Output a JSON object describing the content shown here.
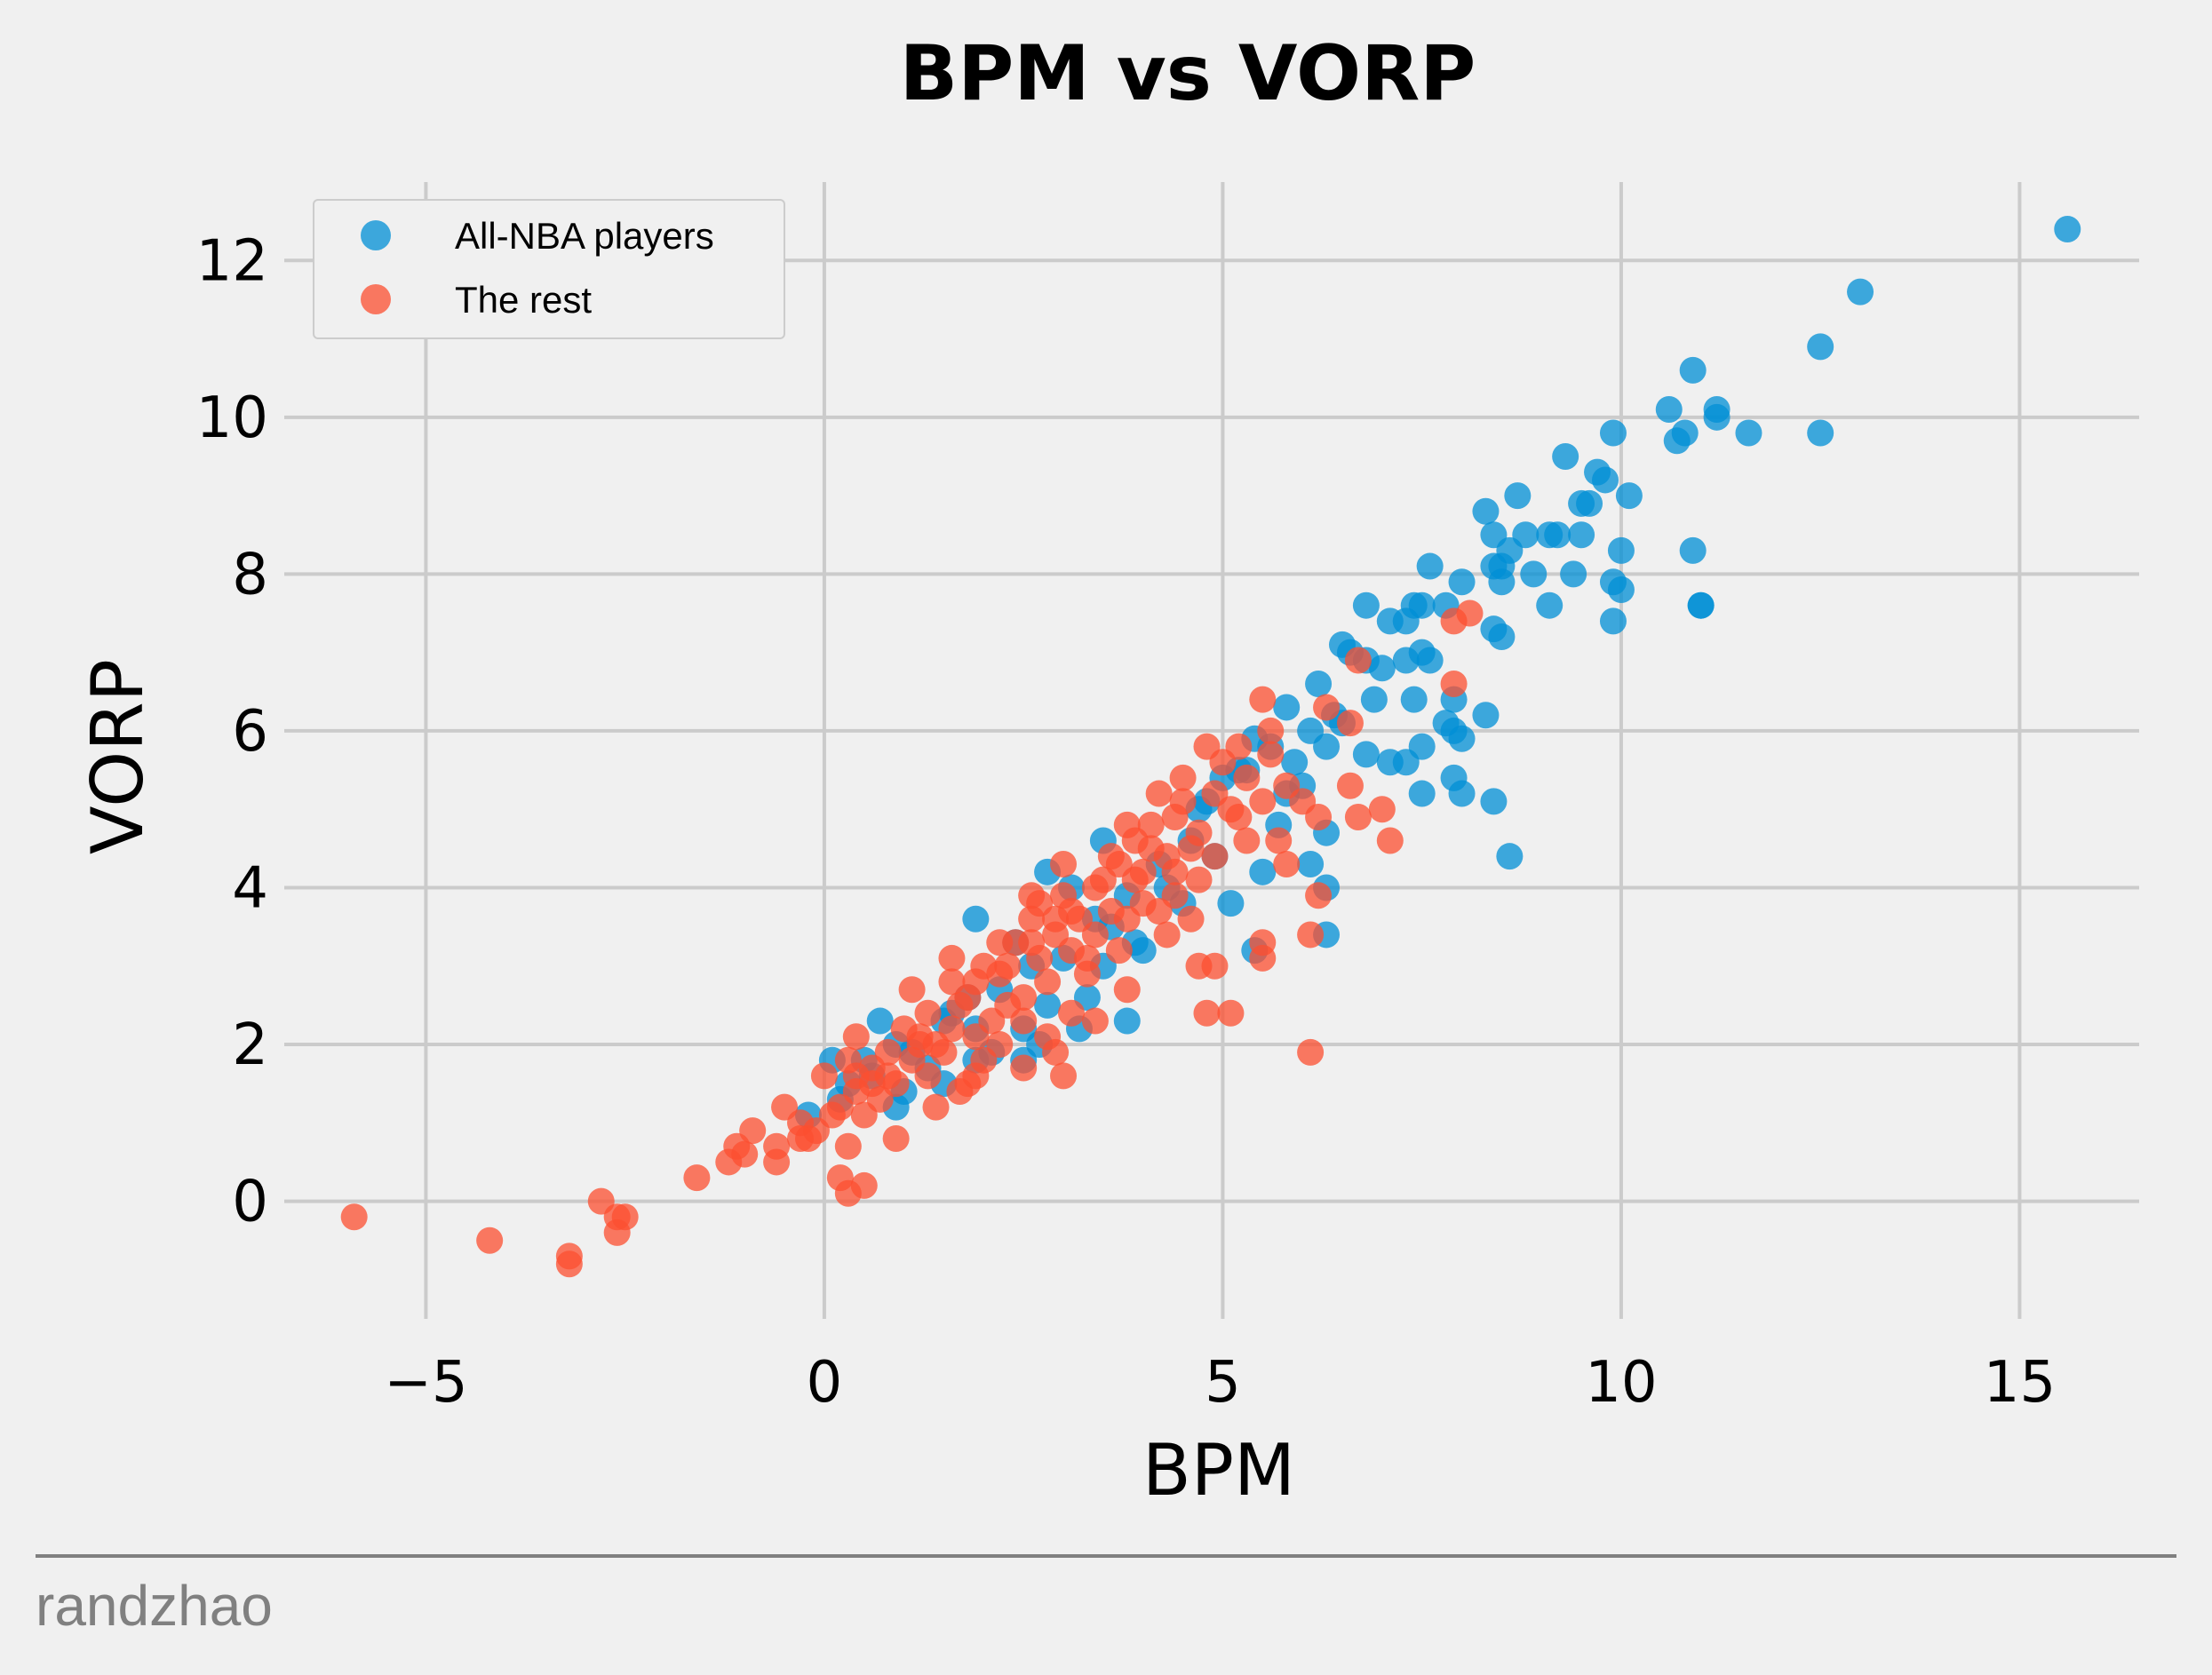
{
  "chart_data": {
    "type": "scatter",
    "title": "BPM vs VORP",
    "xlabel": "BPM",
    "ylabel": "VORP",
    "xlim": [
      -7,
      16.5
    ],
    "ylim": [
      -1.5,
      13
    ],
    "xticks": [
      -5,
      0,
      5,
      10,
      15
    ],
    "xtick_labels": [
      "−5",
      "0",
      "5",
      "10",
      "15"
    ],
    "yticks": [
      0,
      2,
      4,
      6,
      8,
      10,
      12
    ],
    "ytick_labels": [
      "0",
      "2",
      "4",
      "6",
      "8",
      "10",
      "12"
    ],
    "grid": true,
    "legend_position": "top-left",
    "series": [
      {
        "name": "All-NBA players",
        "color": "#008fd5",
        "points": [
          [
            15.6,
            12.4
          ],
          [
            13.0,
            11.6
          ],
          [
            12.5,
            10.9
          ],
          [
            12.5,
            9.8
          ],
          [
            10.9,
            10.6
          ],
          [
            10.6,
            10.1
          ],
          [
            11.2,
            10.1
          ],
          [
            11.2,
            10.0
          ],
          [
            10.8,
            9.8
          ],
          [
            10.7,
            9.7
          ],
          [
            11.6,
            9.8
          ],
          [
            9.9,
            9.8
          ],
          [
            9.3,
            9.5
          ],
          [
            9.7,
            9.3
          ],
          [
            9.8,
            9.2
          ],
          [
            9.5,
            8.9
          ],
          [
            9.6,
            8.9
          ],
          [
            8.7,
            9.0
          ],
          [
            10.1,
            9.0
          ],
          [
            9.1,
            8.5
          ],
          [
            9.2,
            8.5
          ],
          [
            9.5,
            8.5
          ],
          [
            10.0,
            8.3
          ],
          [
            10.9,
            8.3
          ],
          [
            9.4,
            8.0
          ],
          [
            9.9,
            7.9
          ],
          [
            10.0,
            7.8
          ],
          [
            8.9,
            8.0
          ],
          [
            9.1,
            7.6
          ],
          [
            9.9,
            7.4
          ],
          [
            11.0,
            7.6
          ],
          [
            11.0,
            7.6
          ],
          [
            8.3,
            8.8
          ],
          [
            8.4,
            8.5
          ],
          [
            8.8,
            8.5
          ],
          [
            8.6,
            8.3
          ],
          [
            8.5,
            8.1
          ],
          [
            8.4,
            8.1
          ],
          [
            8.5,
            7.9
          ],
          [
            8.0,
            7.9
          ],
          [
            8.4,
            7.3
          ],
          [
            8.5,
            7.2
          ],
          [
            7.6,
            8.1
          ],
          [
            7.5,
            7.6
          ],
          [
            7.8,
            7.6
          ],
          [
            7.4,
            7.6
          ],
          [
            7.1,
            7.4
          ],
          [
            6.8,
            7.6
          ],
          [
            7.3,
            7.4
          ],
          [
            6.5,
            7.1
          ],
          [
            6.6,
            7.0
          ],
          [
            6.8,
            6.9
          ],
          [
            7.0,
            6.8
          ],
          [
            7.3,
            6.9
          ],
          [
            7.5,
            7.0
          ],
          [
            7.6,
            6.9
          ],
          [
            6.9,
            6.4
          ],
          [
            7.4,
            6.4
          ],
          [
            7.9,
            6.4
          ],
          [
            8.3,
            6.2
          ],
          [
            7.9,
            6.0
          ],
          [
            8.0,
            5.9
          ],
          [
            7.8,
            6.1
          ],
          [
            7.5,
            5.8
          ],
          [
            7.3,
            5.6
          ],
          [
            7.1,
            5.6
          ],
          [
            6.8,
            5.7
          ],
          [
            7.5,
            5.2
          ],
          [
            7.9,
            5.4
          ],
          [
            8.0,
            5.2
          ],
          [
            8.4,
            5.1
          ],
          [
            8.6,
            4.4
          ],
          [
            6.2,
            6.6
          ],
          [
            6.4,
            6.2
          ],
          [
            6.1,
            6.0
          ],
          [
            5.8,
            6.3
          ],
          [
            5.6,
            5.8
          ],
          [
            5.4,
            5.9
          ],
          [
            5.2,
            5.5
          ],
          [
            5.9,
            5.6
          ],
          [
            6.3,
            5.8
          ],
          [
            5.0,
            5.4
          ],
          [
            4.8,
            5.1
          ],
          [
            6.3,
            4.7
          ],
          [
            6.1,
            4.3
          ],
          [
            6.3,
            4.0
          ],
          [
            5.5,
            4.2
          ],
          [
            6.3,
            3.4
          ],
          [
            5.4,
            3.2
          ],
          [
            5.1,
            3.8
          ],
          [
            4.6,
            4.6
          ],
          [
            4.2,
            4.3
          ],
          [
            3.8,
            3.9
          ],
          [
            3.5,
            4.6
          ],
          [
            2.8,
            4.2
          ],
          [
            3.4,
            3.6
          ],
          [
            3.9,
            3.3
          ],
          [
            4.0,
            3.2
          ],
          [
            3.5,
            3.0
          ],
          [
            2.6,
            3.0
          ],
          [
            1.9,
            3.6
          ],
          [
            2.8,
            2.5
          ],
          [
            3.3,
            2.6
          ],
          [
            3.8,
            2.3
          ],
          [
            2.5,
            2.2
          ],
          [
            1.9,
            2.2
          ],
          [
            2.5,
            1.8
          ],
          [
            1.8,
            2.6
          ],
          [
            1.5,
            2.3
          ],
          [
            0.7,
            2.3
          ],
          [
            0.9,
            2.0
          ],
          [
            1.1,
            1.9
          ],
          [
            0.5,
            1.8
          ],
          [
            0.1,
            1.8
          ],
          [
            0.3,
            1.5
          ],
          [
            0.6,
            1.6
          ],
          [
            1.3,
            1.7
          ],
          [
            1.9,
            1.8
          ],
          [
            0.9,
            1.2
          ],
          [
            1.5,
            1.5
          ],
          [
            2.1,
            1.9
          ],
          [
            3.2,
            2.2
          ],
          [
            4.7,
            5.0
          ],
          [
            5.3,
            5.5
          ],
          [
            6.0,
            5.3
          ],
          [
            6.5,
            6.1
          ],
          [
            5.8,
            5.2
          ],
          [
            4.3,
            4.0
          ],
          [
            5.7,
            4.8
          ],
          [
            4.9,
            4.4
          ],
          [
            3.6,
            3.5
          ],
          [
            3.0,
            3.1
          ],
          [
            2.2,
            2.7
          ],
          [
            2.7,
            2.0
          ],
          [
            4.5,
            3.8
          ],
          [
            3.1,
            4.0
          ],
          [
            2.4,
            3.3
          ],
          [
            1.6,
            2.4
          ],
          [
            1.0,
            1.4
          ],
          [
            -0.2,
            1.1
          ],
          [
            0.2,
            1.3
          ]
        ]
      },
      {
        "name": "The rest",
        "color": "#fc4f30",
        "points": [
          [
            -5.9,
            -0.2
          ],
          [
            -4.2,
            -0.5
          ],
          [
            -3.2,
            -0.7
          ],
          [
            -3.2,
            -0.8
          ],
          [
            -2.8,
            0.0
          ],
          [
            -2.6,
            -0.2
          ],
          [
            -2.5,
            -0.2
          ],
          [
            -2.6,
            -0.4
          ],
          [
            -1.6,
            0.3
          ],
          [
            -1.1,
            0.7
          ],
          [
            -1.2,
            0.5
          ],
          [
            -1.0,
            0.6
          ],
          [
            -0.9,
            0.9
          ],
          [
            -0.6,
            0.7
          ],
          [
            -0.6,
            0.5
          ],
          [
            -0.5,
            1.2
          ],
          [
            -0.3,
            1.0
          ],
          [
            -0.2,
            0.8
          ],
          [
            0.2,
            0.3
          ],
          [
            0.3,
            0.1
          ],
          [
            0.5,
            0.2
          ],
          [
            0.3,
            0.7
          ],
          [
            0.0,
            1.6
          ],
          [
            0.3,
            1.8
          ],
          [
            0.4,
            2.1
          ],
          [
            0.6,
            1.5
          ],
          [
            0.8,
            1.9
          ],
          [
            1.0,
            2.2
          ],
          [
            1.1,
            2.7
          ],
          [
            1.3,
            2.4
          ],
          [
            1.6,
            3.1
          ],
          [
            1.4,
            2.0
          ],
          [
            1.7,
            2.5
          ],
          [
            1.9,
            2.8
          ],
          [
            2.1,
            2.3
          ],
          [
            2.3,
            3.0
          ],
          [
            2.4,
            3.3
          ],
          [
            2.5,
            2.6
          ],
          [
            2.6,
            3.6
          ],
          [
            2.7,
            3.1
          ],
          [
            2.8,
            2.8
          ],
          [
            2.9,
            3.4
          ],
          [
            3.0,
            3.9
          ],
          [
            3.1,
            3.2
          ],
          [
            3.2,
            3.6
          ],
          [
            3.3,
            2.9
          ],
          [
            3.4,
            3.4
          ],
          [
            3.5,
            4.1
          ],
          [
            3.6,
            3.7
          ],
          [
            3.7,
            4.3
          ],
          [
            3.8,
            3.6
          ],
          [
            3.9,
            4.6
          ],
          [
            4.0,
            4.2
          ],
          [
            4.1,
            4.8
          ],
          [
            4.2,
            5.2
          ],
          [
            4.3,
            4.4
          ],
          [
            4.4,
            4.9
          ],
          [
            4.5,
            5.4
          ],
          [
            4.6,
            4.5
          ],
          [
            4.7,
            4.1
          ],
          [
            4.8,
            5.8
          ],
          [
            4.9,
            5.2
          ],
          [
            5.0,
            5.6
          ],
          [
            5.2,
            4.9
          ],
          [
            5.3,
            5.4
          ],
          [
            5.5,
            6.4
          ],
          [
            5.5,
            5.1
          ],
          [
            5.6,
            5.7
          ],
          [
            5.7,
            4.6
          ],
          [
            5.8,
            4.3
          ],
          [
            2.5,
            1.7
          ],
          [
            2.9,
            1.9
          ],
          [
            3.0,
            1.6
          ],
          [
            3.4,
            2.3
          ],
          [
            3.8,
            2.7
          ],
          [
            3.1,
            2.4
          ],
          [
            2.8,
            2.1
          ],
          [
            2.2,
            2.0
          ],
          [
            2.5,
            2.3
          ],
          [
            1.8,
            1.5
          ],
          [
            1.7,
            1.4
          ],
          [
            1.4,
            1.2
          ],
          [
            1.3,
            1.6
          ],
          [
            1.5,
            1.9
          ],
          [
            1.9,
            1.6
          ],
          [
            2.0,
            1.8
          ],
          [
            0.9,
            0.8
          ],
          [
            0.7,
            1.3
          ],
          [
            0.5,
            1.1
          ],
          [
            0.1,
            1.1
          ],
          [
            -0.1,
            0.9
          ],
          [
            0.4,
            1.4
          ],
          [
            0.6,
            1.7
          ],
          [
            0.9,
            1.5
          ],
          [
            1.1,
            1.8
          ],
          [
            1.2,
            2.1
          ],
          [
            1.6,
            2.2
          ],
          [
            1.8,
            2.6
          ],
          [
            2.0,
            3.0
          ],
          [
            2.2,
            2.9
          ],
          [
            2.6,
            3.3
          ],
          [
            3.1,
            3.7
          ],
          [
            3.4,
            4.0
          ],
          [
            3.7,
            3.2
          ],
          [
            4.0,
            3.8
          ],
          [
            4.3,
            3.4
          ],
          [
            4.6,
            3.6
          ],
          [
            4.2,
            3.7
          ],
          [
            4.4,
            4.2
          ],
          [
            4.7,
            4.7
          ],
          [
            4.9,
            4.4
          ],
          [
            5.1,
            5.0
          ],
          [
            5.3,
            4.6
          ],
          [
            4.9,
            3.0
          ],
          [
            4.8,
            2.4
          ],
          [
            5.1,
            2.4
          ],
          [
            4.7,
            3.0
          ],
          [
            5.5,
            3.1
          ],
          [
            5.5,
            3.3
          ],
          [
            6.1,
            3.4
          ],
          [
            6.2,
            3.9
          ],
          [
            6.1,
            1.9
          ],
          [
            6.7,
            4.9
          ],
          [
            6.6,
            5.3
          ],
          [
            7.0,
            5.0
          ],
          [
            7.1,
            4.6
          ],
          [
            6.3,
            6.3
          ],
          [
            6.6,
            6.1
          ],
          [
            6.7,
            6.9
          ],
          [
            7.9,
            7.4
          ],
          [
            8.1,
            7.5
          ],
          [
            7.9,
            6.6
          ],
          [
            6.2,
            4.9
          ],
          [
            5.8,
            5.3
          ],
          [
            6.0,
            5.1
          ],
          [
            5.6,
            6.0
          ],
          [
            5.2,
            5.8
          ],
          [
            2.7,
            3.8
          ],
          [
            2.2,
            3.3
          ],
          [
            1.6,
            2.8
          ],
          [
            1.2,
            2.0
          ],
          [
            0.8,
            1.6
          ],
          [
            0.4,
            1.6
          ],
          [
            0.2,
            1.2
          ],
          [
            -0.3,
            0.8
          ],
          [
            2.9,
            3.6
          ],
          [
            3.6,
            4.4
          ],
          [
            3.9,
            4.1
          ],
          [
            3.3,
            3.1
          ],
          [
            2.3,
            2.5
          ],
          [
            1.9,
            2.1
          ],
          [
            2.6,
            3.9
          ],
          [
            3.0,
            4.3
          ],
          [
            4.1,
            4.5
          ],
          [
            4.4,
            3.9
          ],
          [
            3.8,
            4.8
          ],
          [
            4.5,
            5.1
          ]
        ]
      }
    ]
  },
  "footer": {
    "credit": "randzhao"
  }
}
